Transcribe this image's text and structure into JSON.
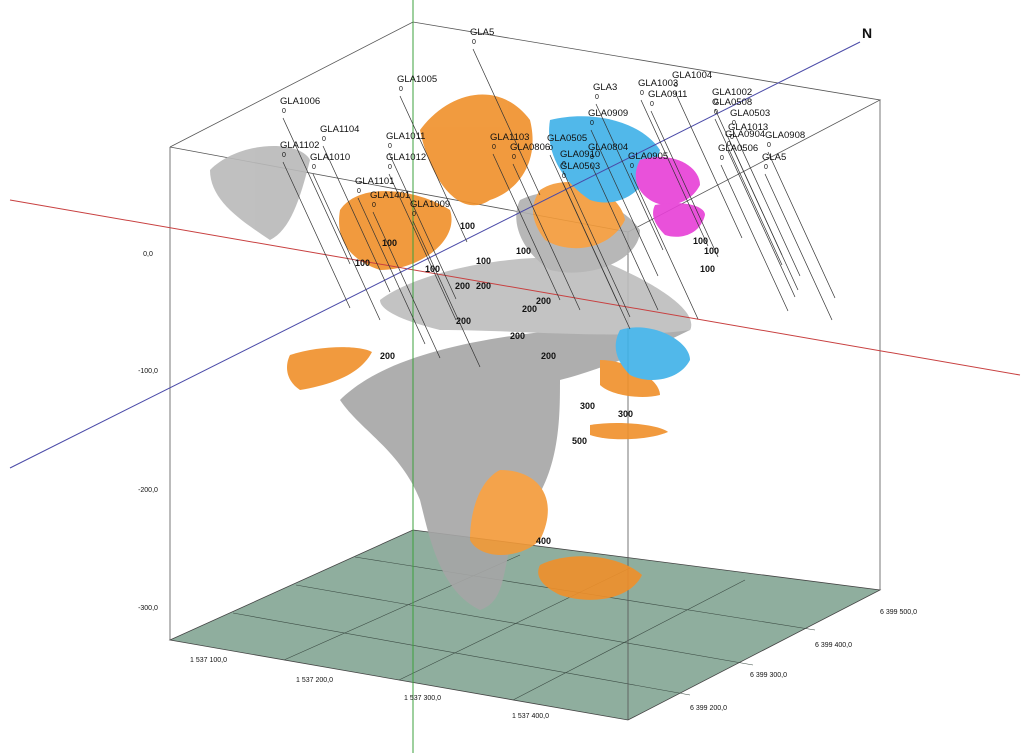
{
  "north": "N",
  "elevation_labels": [
    "0,0",
    "-100,0",
    "-200,0",
    "-300,0"
  ],
  "easting_labels": [
    "1 537 100,0",
    "1 537 200,0",
    "1 537 300,0",
    "1 537 400,0"
  ],
  "northing_labels": [
    "6 399 200,0",
    "6 399 300,0",
    "6 399 400,0",
    "6 399 500,0"
  ],
  "holes": [
    {
      "label": "GLA5",
      "collar": "0"
    },
    {
      "label": "GLA1005",
      "collar": "0"
    },
    {
      "label": "GLA1006",
      "collar": "0"
    },
    {
      "label": "GLA1104",
      "collar": "0"
    },
    {
      "label": "GLA1102",
      "collar": "0"
    },
    {
      "label": "GLA1010",
      "collar": "0"
    },
    {
      "label": "GLA1011",
      "collar": "0"
    },
    {
      "label": "GLA1012",
      "collar": "0"
    },
    {
      "label": "GLA1101",
      "collar": "0"
    },
    {
      "label": "GLA1401",
      "collar": "0"
    },
    {
      "label": "GLA1009",
      "collar": "0"
    },
    {
      "label": "GLA1103",
      "collar": "0"
    },
    {
      "label": "GLA0806",
      "collar": "0"
    },
    {
      "label": "GLA0505",
      "collar": "0"
    },
    {
      "label": "GLA0910",
      "collar": "0"
    },
    {
      "label": "GLA0503",
      "collar": "0"
    },
    {
      "label": "GLA0804",
      "collar": "0"
    },
    {
      "label": "GLA0909",
      "collar": "0"
    },
    {
      "label": "GLA3",
      "collar": "0"
    },
    {
      "label": "GLA1003",
      "collar": "0"
    },
    {
      "label": "GLA1004",
      "collar": "0"
    },
    {
      "label": "GLA1002",
      "collar": "0"
    },
    {
      "label": "GLA0911",
      "collar": "0"
    },
    {
      "label": "GLA0508",
      "collar": "0"
    },
    {
      "label": "GLA0503",
      "collar": "0"
    },
    {
      "label": "GLA1013",
      "collar": "0"
    },
    {
      "label": "GLA0904",
      "collar": "0"
    },
    {
      "label": "GLA0908",
      "collar": "0"
    },
    {
      "label": "GLA0506",
      "collar": "0"
    },
    {
      "label": "GLA0905",
      "collar": "0"
    },
    {
      "label": "GLA5",
      "collar": "0"
    }
  ],
  "depth_marks": [
    "100",
    "100",
    "100",
    "100",
    "100",
    "100",
    "100",
    "100",
    "100",
    "200",
    "200",
    "200",
    "200",
    "200",
    "200",
    "200",
    "200",
    "300",
    "300",
    "400",
    "500"
  ]
}
